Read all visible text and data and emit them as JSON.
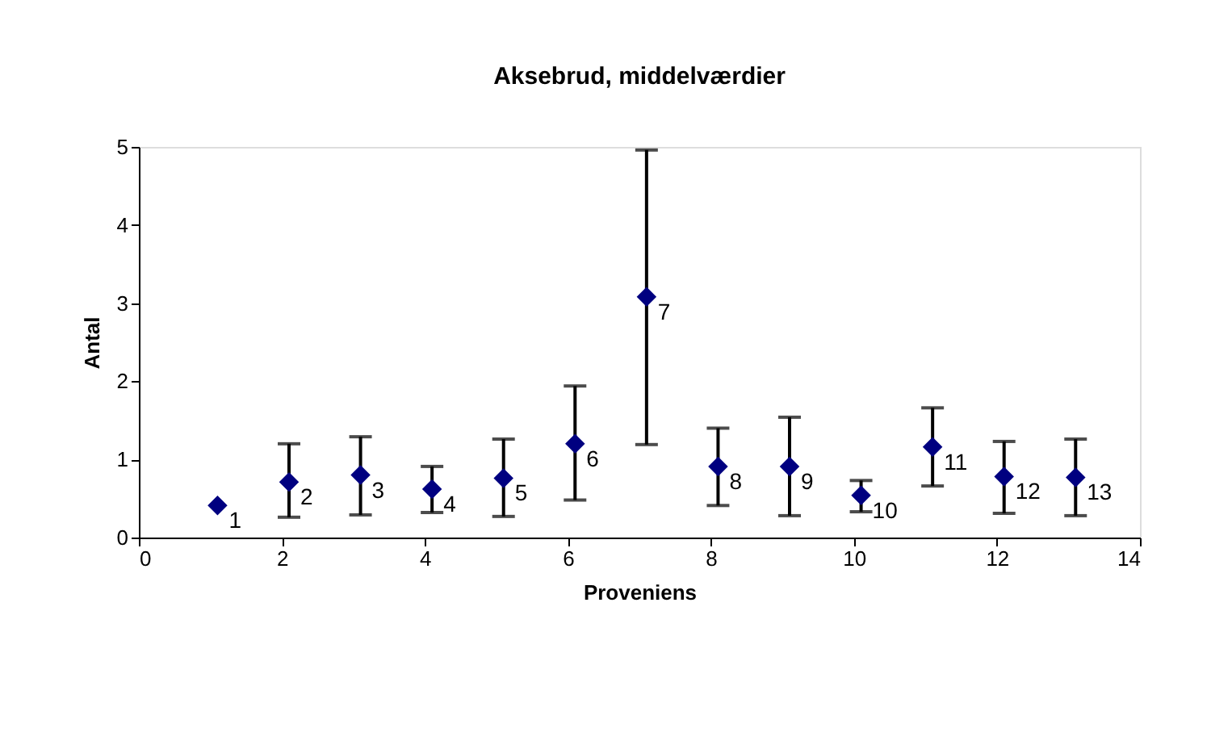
{
  "chart_data": {
    "type": "scatter",
    "title": "Aksebrud, middelværdier",
    "xlabel": "Proveniens",
    "ylabel": "Antal",
    "x": [
      1.1,
      2.1,
      3.1,
      4.1,
      5.1,
      6.1,
      7.1,
      8.1,
      9.1,
      10.1,
      11.1,
      12.1,
      13.1
    ],
    "series": [
      {
        "color": "#000080",
        "values": [
          0.41,
          0.71,
          0.8,
          0.62,
          0.76,
          1.2,
          3.08,
          0.91,
          0.91,
          0.54,
          1.16,
          0.78,
          0.77
        ],
        "errors": [
          null,
          [
            0.26,
            1.2
          ],
          [
            0.29,
            1.29
          ],
          [
            0.32,
            0.91
          ],
          [
            0.27,
            1.26
          ],
          [
            0.48,
            1.94
          ],
          [
            1.19,
            4.96
          ],
          [
            0.41,
            1.4
          ],
          [
            0.28,
            1.54
          ],
          [
            0.33,
            0.73
          ],
          [
            0.66,
            1.66
          ],
          [
            0.31,
            1.23
          ],
          [
            0.28,
            1.26
          ]
        ]
      }
    ],
    "xlim": [
      0,
      14
    ],
    "xticks": [
      0,
      2,
      4,
      6,
      8,
      10,
      12,
      14
    ],
    "ylim": [
      0,
      5
    ],
    "yticks": [
      0,
      1,
      2,
      3,
      4,
      5
    ],
    "grid": false,
    "marker": "diamond",
    "annotations": [
      {
        "text": "1",
        "x": 1.1,
        "y": 0.41
      },
      {
        "text": "2",
        "x": 2.1,
        "y": 0.71
      },
      {
        "text": "3",
        "x": 3.1,
        "y": 0.8
      },
      {
        "text": "4",
        "x": 4.1,
        "y": 0.62
      },
      {
        "text": "5",
        "x": 5.1,
        "y": 0.76
      },
      {
        "text": "6",
        "x": 6.1,
        "y": 1.2
      },
      {
        "text": "7",
        "x": 7.1,
        "y": 3.08
      },
      {
        "text": "8",
        "x": 8.1,
        "y": 0.91
      },
      {
        "text": "9",
        "x": 9.1,
        "y": 0.91
      },
      {
        "text": "10",
        "x": 10.1,
        "y": 0.54
      },
      {
        "text": "11",
        "x": 11.1,
        "y": 1.16
      },
      {
        "text": "12",
        "x": 12.1,
        "y": 0.78
      },
      {
        "text": "13",
        "x": 13.1,
        "y": 0.77
      }
    ]
  }
}
